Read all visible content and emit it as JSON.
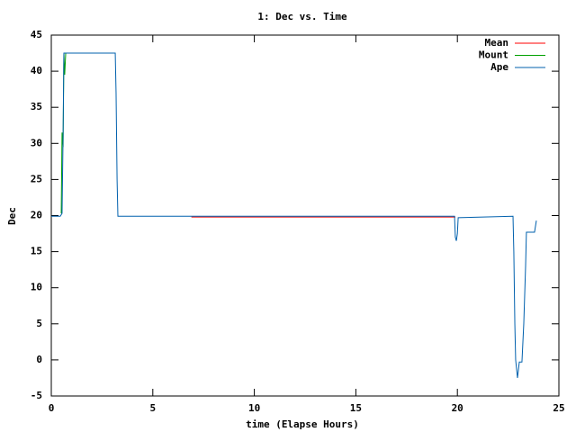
{
  "chart_data": {
    "type": "line",
    "title": "1: Dec vs. Time",
    "xlabel": "time (Elapse Hours)",
    "ylabel": "Dec",
    "xlim": [
      0,
      25
    ],
    "xticks": [
      0,
      5,
      10,
      15,
      20,
      25
    ],
    "ylim": [
      -5,
      45
    ],
    "yticks": [
      -5,
      0,
      5,
      10,
      15,
      20,
      25,
      30,
      35,
      40,
      45
    ],
    "grid": false,
    "legend": "top-right",
    "series": [
      {
        "name": "Mean",
        "color": "#ff0000",
        "x": [
          6.9,
          19.9
        ],
        "values": [
          19.8,
          19.8
        ]
      },
      {
        "name": "Mount",
        "color": "#00a000",
        "x": [
          0.49,
          0.53,
          0.58,
          0.62,
          0.66,
          0.71,
          0.8
        ],
        "values": [
          20.3,
          31.5,
          29.5,
          42.5,
          39.5,
          42.5,
          42.5
        ]
      },
      {
        "name": "Ape",
        "color": "#0060ad",
        "x": [
          0,
          0.44,
          0.53,
          0.58,
          0.62,
          3.15,
          3.19,
          3.24,
          3.28,
          19.86,
          19.9,
          19.95,
          20.0,
          20.04,
          22.74,
          22.78,
          22.83,
          22.87,
          22.96,
          23.05,
          23.18,
          23.27,
          23.36,
          23.4,
          23.8,
          23.89
        ],
        "values": [
          19.9,
          19.9,
          20.3,
          31,
          42.5,
          42.5,
          37,
          25,
          19.9,
          19.9,
          17,
          16.5,
          17.5,
          19.7,
          19.9,
          15,
          5,
          0,
          -2.5,
          -0.3,
          -0.3,
          5,
          13,
          17.7,
          17.7,
          19.3
        ]
      }
    ]
  }
}
